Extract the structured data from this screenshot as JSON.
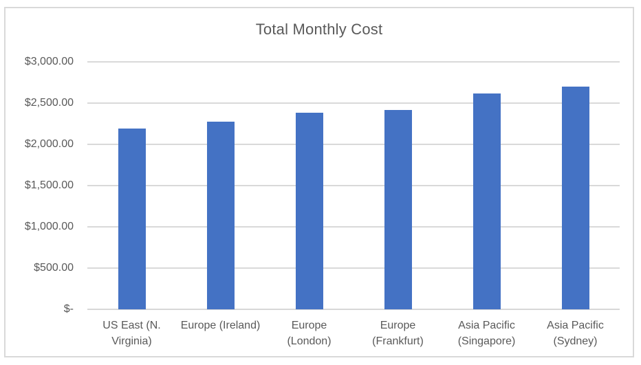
{
  "chart_data": {
    "type": "bar",
    "title": "Total Monthly Cost",
    "categories": [
      "US East (N. Virginia)",
      "Europe (Ireland)",
      "Europe (London)",
      "Europe (Frankfurt)",
      "Asia Pacific (Singapore)",
      "Asia Pacific (Sydney)"
    ],
    "category_display": [
      "US East (N.\nVirginia)",
      "Europe (Ireland)",
      "Europe\n(London)",
      "Europe\n(Frankfurt)",
      "Asia Pacific\n(Singapore)",
      "Asia Pacific\n(Sydney)"
    ],
    "values": [
      2190,
      2275,
      2385,
      2415,
      2615,
      2700
    ],
    "xlabel": "",
    "ylabel": "",
    "ylim": [
      0,
      3000
    ],
    "ytick_step": 500,
    "ytick_labels": [
      "$-",
      "$500.00",
      "$1,000.00",
      "$1,500.00",
      "$2,000.00",
      "$2,500.00",
      "$3,000.00"
    ],
    "grid": true,
    "legend": false,
    "bar_color": "#4472C4",
    "gridline_color": "#D9D9D9",
    "axis_line_color": "#D7D7D7",
    "text_color": "#595959",
    "frame_border_color": "#D9D9D9",
    "background": "#FFFFFF"
  }
}
